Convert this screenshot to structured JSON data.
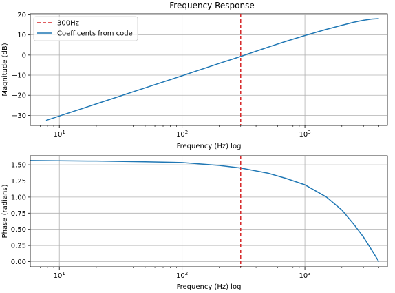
{
  "chart_data": [
    {
      "type": "line",
      "title": "Frequency Response",
      "xlabel": "Frequency (Hz) log",
      "ylabel": "Magnitude (dB)",
      "xscale": "log",
      "xlim": [
        5.8,
        4700
      ],
      "ylim": [
        -35,
        20.5
      ],
      "x_ticks": [
        {
          "value": 10,
          "base": "10",
          "exp": "1"
        },
        {
          "value": 100,
          "base": "10",
          "exp": "2"
        },
        {
          "value": 1000,
          "base": "10",
          "exp": "3"
        }
      ],
      "y_ticks": [
        {
          "value": 20,
          "label": "20"
        },
        {
          "value": 10,
          "label": "10"
        },
        {
          "value": 0,
          "label": "0"
        },
        {
          "value": -10,
          "label": "−10"
        },
        {
          "value": -20,
          "label": "−20"
        },
        {
          "value": -30,
          "label": "−30"
        }
      ],
      "grid": true,
      "legend_position": "top-left",
      "vline": {
        "x": 300,
        "name": "300Hz",
        "color": "#d62728",
        "style": "dashed"
      },
      "series": [
        {
          "name": "Coefficents from code",
          "color": "#1f77b4",
          "x": [
            7.8,
            10,
            20,
            50,
            100,
            200,
            300,
            500,
            700,
            1000,
            1500,
            2000,
            2500,
            3000,
            3500,
            4000
          ],
          "y": [
            -32.5,
            -30.3,
            -24.3,
            -16.3,
            -10.3,
            -4.2,
            -0.7,
            3.9,
            6.8,
            9.7,
            12.8,
            14.8,
            16.3,
            17.3,
            17.9,
            18.1
          ]
        }
      ]
    },
    {
      "type": "line",
      "title": "",
      "xlabel": "Frequency (Hz) log",
      "ylabel": "Phase (radians)",
      "xscale": "log",
      "xlim": [
        5.8,
        4700
      ],
      "ylim": [
        -0.08,
        1.64
      ],
      "x_ticks": [
        {
          "value": 10,
          "base": "10",
          "exp": "1"
        },
        {
          "value": 100,
          "base": "10",
          "exp": "2"
        },
        {
          "value": 1000,
          "base": "10",
          "exp": "3"
        }
      ],
      "y_ticks": [
        {
          "value": 1.5,
          "label": "1.50"
        },
        {
          "value": 1.25,
          "label": "1.25"
        },
        {
          "value": 1.0,
          "label": "1.00"
        },
        {
          "value": 0.75,
          "label": "0.75"
        },
        {
          "value": 0.5,
          "label": "0.50"
        },
        {
          "value": 0.25,
          "label": "0.25"
        },
        {
          "value": 0.0,
          "label": "0.00"
        }
      ],
      "grid": true,
      "vline": {
        "x": 300,
        "color": "#d62728",
        "style": "dashed"
      },
      "series": [
        {
          "color": "#1f77b4",
          "x": [
            5.8,
            10,
            20,
            50,
            100,
            200,
            300,
            500,
            700,
            1000,
            1500,
            2000,
            2500,
            3000,
            3500,
            4000
          ],
          "y": [
            1.566,
            1.563,
            1.558,
            1.546,
            1.535,
            1.49,
            1.45,
            1.37,
            1.29,
            1.19,
            1.0,
            0.8,
            0.58,
            0.38,
            0.18,
            0.0
          ]
        }
      ]
    }
  ]
}
